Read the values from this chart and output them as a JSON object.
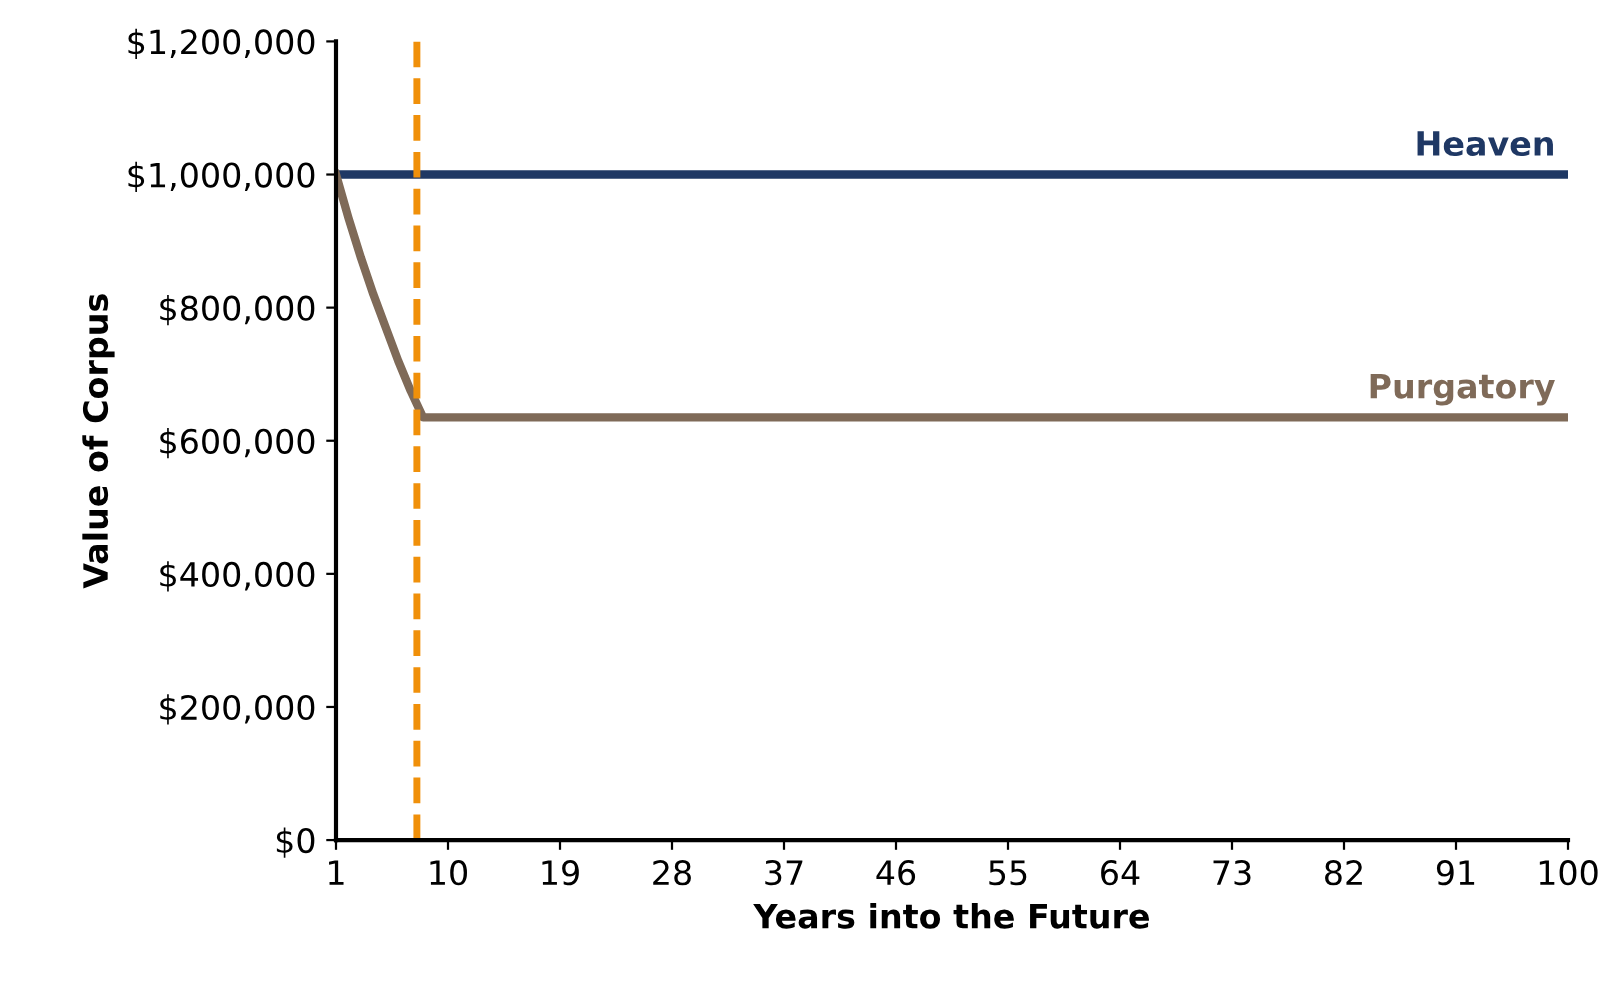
{
  "chart_data": {
    "type": "line",
    "xlabel": "Years into the Future",
    "ylabel": "Value of Corpus",
    "series": [
      {
        "name": "Heaven",
        "color": "#1f3864",
        "x": [
          1,
          100
        ],
        "values": [
          1000000,
          1000000
        ]
      },
      {
        "name": "Purgatory",
        "color": "#7f6a58",
        "x": [
          1,
          2,
          3,
          4,
          5,
          6,
          7,
          8,
          100
        ],
        "values": [
          1000000,
          935000,
          875000,
          820000,
          770000,
          720000,
          675000,
          635000,
          635000
        ]
      }
    ],
    "ref_lines": [
      {
        "axis": "x",
        "value": 7.5,
        "color": "#f0900a",
        "line_style": "dashed"
      }
    ],
    "xlim": [
      1,
      100
    ],
    "xticks": [
      1,
      10,
      19,
      28,
      37,
      46,
      55,
      64,
      73,
      82,
      91,
      100
    ],
    "ylim": [
      0,
      1200000
    ],
    "yticks": [
      {
        "value": 0,
        "label": "$0"
      },
      {
        "value": 200000,
        "label": "$200,000"
      },
      {
        "value": 400000,
        "label": "$400,000"
      },
      {
        "value": 600000,
        "label": "$600,000"
      },
      {
        "value": 800000,
        "label": "$800,000"
      },
      {
        "value": 1000000,
        "label": "$1,000,000"
      },
      {
        "value": 1200000,
        "label": "$1,200,000"
      }
    ],
    "grid": false,
    "marker": "none",
    "line_style": "solid"
  }
}
